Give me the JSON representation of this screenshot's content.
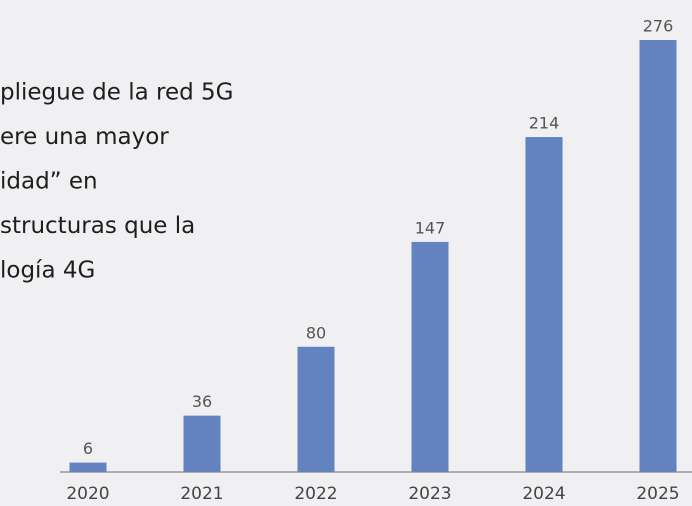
{
  "chart_data": {
    "type": "bar",
    "annotation": [
      "pliegue de la red 5G",
      "ere una mayor",
      "idad” en",
      "structuras que la",
      "logía 4G"
    ],
    "categories": [
      "2020",
      "2021",
      "2022",
      "2023",
      "2024",
      "2025"
    ],
    "values": [
      6,
      36,
      80,
      147,
      214,
      276
    ],
    "color": "#6283bf"
  }
}
